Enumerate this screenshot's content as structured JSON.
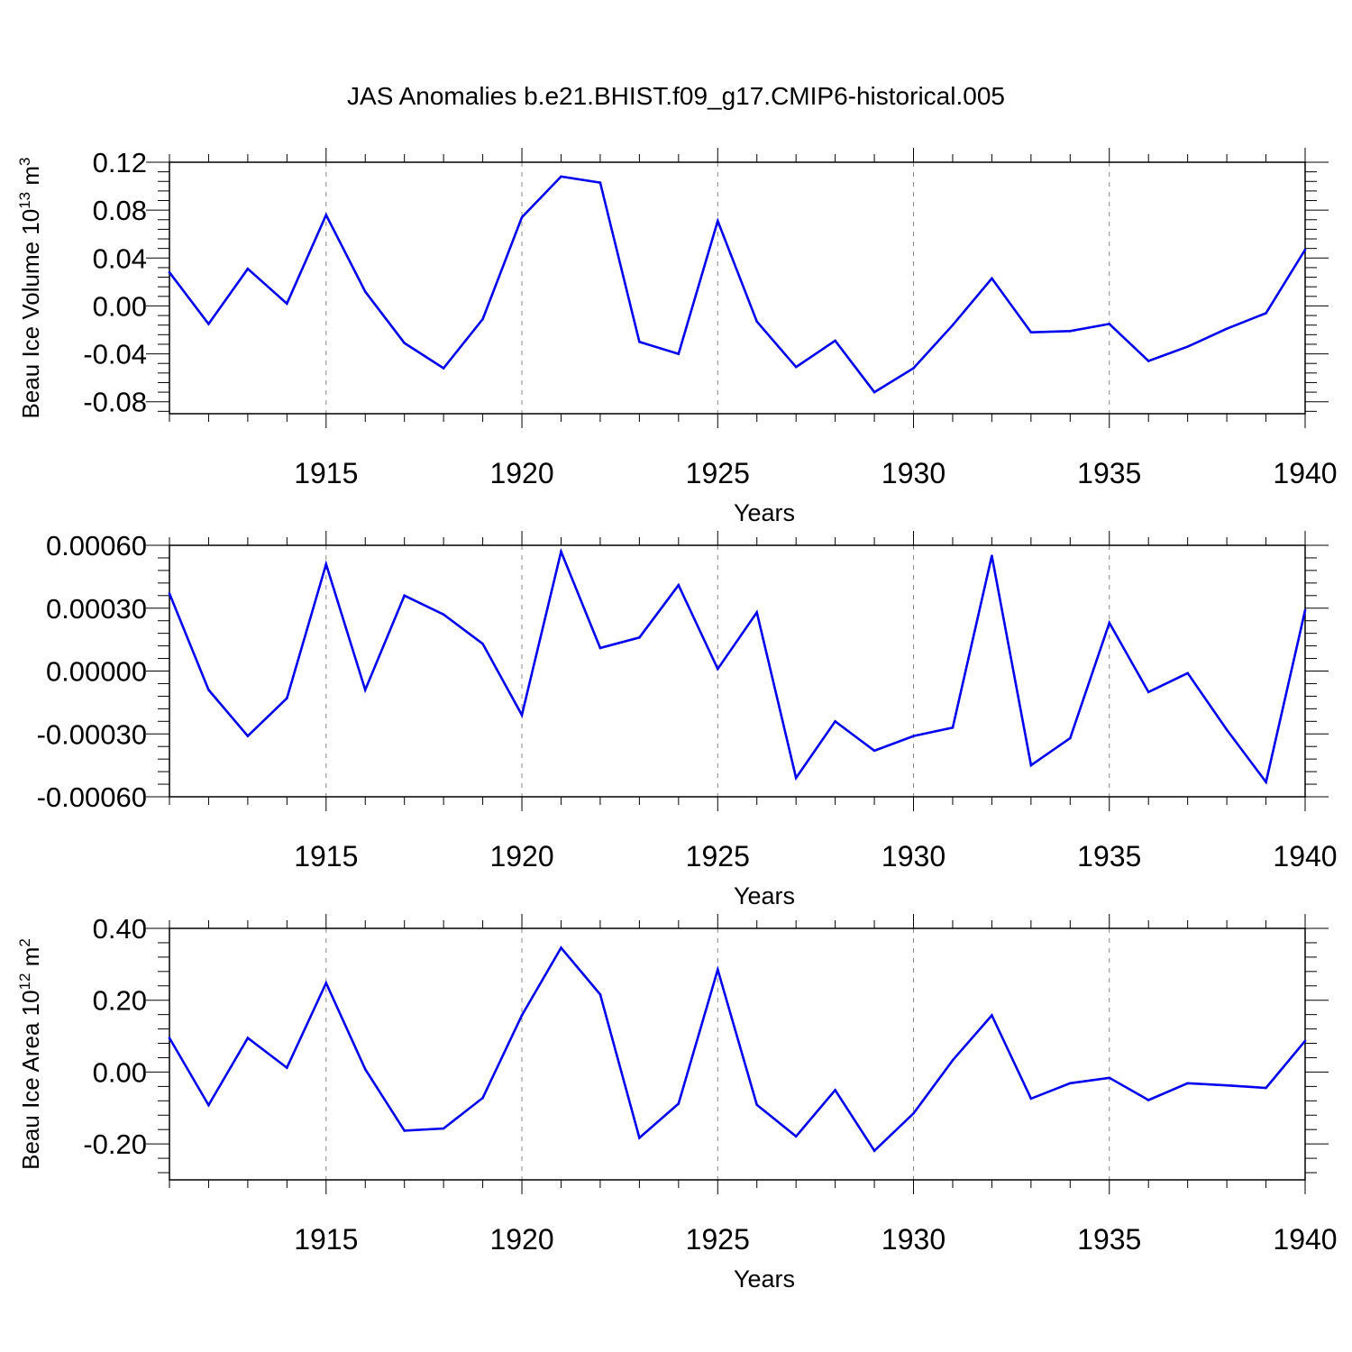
{
  "title": "JAS Anomalies b.e21.BHIST.f09_g17.CMIP6-historical.005",
  "colors": {
    "line": "#0000ee",
    "axis": "#000000",
    "grid": "#888888"
  },
  "chart_data": [
    {
      "type": "line",
      "xlabel": "Years",
      "ylabel": "Beau Ice Volume 10",
      "ylabel_exp": "13",
      "ylabel_unit": " m",
      "ylabel_unit_exp": "3",
      "xlim": [
        1911,
        1940
      ],
      "ylim": [
        -0.09,
        0.12
      ],
      "xticks": [
        1915,
        1920,
        1925,
        1930,
        1935,
        1940
      ],
      "yticks": [
        -0.08,
        -0.04,
        0.0,
        0.04,
        0.08,
        0.12
      ],
      "ytick_labels": [
        "-0.08",
        "-0.04",
        "0.00",
        "0.04",
        "0.08",
        "0.12"
      ],
      "grid_x": true,
      "x": [
        1911,
        1912,
        1913,
        1914,
        1915,
        1916,
        1917,
        1918,
        1919,
        1920,
        1921,
        1922,
        1923,
        1924,
        1925,
        1926,
        1927,
        1928,
        1929,
        1930,
        1931,
        1932,
        1933,
        1934,
        1935,
        1936,
        1937,
        1938,
        1939,
        1940
      ],
      "y": [
        0.028,
        -0.015,
        0.031,
        0.002,
        0.076,
        0.012,
        -0.031,
        -0.052,
        -0.011,
        0.074,
        0.108,
        0.103,
        -0.03,
        -0.04,
        0.071,
        -0.013,
        -0.051,
        -0.029,
        -0.072,
        -0.052,
        -0.016,
        0.023,
        -0.022,
        -0.021,
        -0.015,
        -0.046,
        -0.034,
        -0.019,
        -0.006,
        0.047
      ]
    },
    {
      "type": "line",
      "xlabel": "Years",
      "ylabel": "",
      "xlim": [
        1911,
        1940
      ],
      "ylim": [
        -0.0006,
        0.0006
      ],
      "xticks": [
        1915,
        1920,
        1925,
        1930,
        1935,
        1940
      ],
      "yticks": [
        -0.0006,
        -0.0003,
        0.0,
        0.0003,
        0.0006
      ],
      "ytick_labels": [
        "-0.00060",
        "-0.00030",
        "0.00000",
        "0.00030",
        "0.00060"
      ],
      "grid_x": true,
      "x": [
        1911,
        1912,
        1913,
        1914,
        1915,
        1916,
        1917,
        1918,
        1919,
        1920,
        1921,
        1922,
        1923,
        1924,
        1925,
        1926,
        1927,
        1928,
        1929,
        1930,
        1931,
        1932,
        1933,
        1934,
        1935,
        1936,
        1937,
        1938,
        1939,
        1940
      ],
      "y": [
        0.00037,
        -9e-05,
        -0.00031,
        -0.00013,
        0.00051,
        -9e-05,
        0.00036,
        0.00027,
        0.00013,
        -0.00021,
        0.00057,
        0.00011,
        0.00016,
        0.00041,
        1e-05,
        0.00028,
        -0.00051,
        -0.00024,
        -0.00038,
        -0.00031,
        -0.00027,
        0.00055,
        -0.00045,
        -0.00032,
        0.00023,
        -0.0001,
        -1e-05,
        -0.00028,
        -0.00053,
        0.00029
      ]
    },
    {
      "type": "line",
      "xlabel": "Years",
      "ylabel": "Beau Ice Area 10",
      "ylabel_exp": "12",
      "ylabel_unit": " m",
      "ylabel_unit_exp": "2",
      "xlim": [
        1911,
        1940
      ],
      "ylim": [
        -0.3,
        0.4
      ],
      "xticks": [
        1915,
        1920,
        1925,
        1930,
        1935,
        1940
      ],
      "yticks": [
        -0.2,
        0.0,
        0.2,
        0.4
      ],
      "ytick_labels": [
        "-0.20",
        "0.00",
        "0.20",
        "0.40"
      ],
      "grid_x": true,
      "x": [
        1911,
        1912,
        1913,
        1914,
        1915,
        1916,
        1917,
        1918,
        1919,
        1920,
        1921,
        1922,
        1923,
        1924,
        1925,
        1926,
        1927,
        1928,
        1929,
        1930,
        1931,
        1932,
        1933,
        1934,
        1935,
        1936,
        1937,
        1938,
        1939,
        1940
      ],
      "y": [
        0.095,
        -0.092,
        0.095,
        0.012,
        0.248,
        0.008,
        -0.163,
        -0.157,
        -0.072,
        0.158,
        0.346,
        0.216,
        -0.183,
        -0.088,
        0.285,
        -0.091,
        -0.179,
        -0.05,
        -0.219,
        -0.115,
        0.033,
        0.158,
        -0.074,
        -0.031,
        -0.016,
        -0.078,
        -0.031,
        -0.037,
        -0.044,
        0.087
      ]
    }
  ]
}
